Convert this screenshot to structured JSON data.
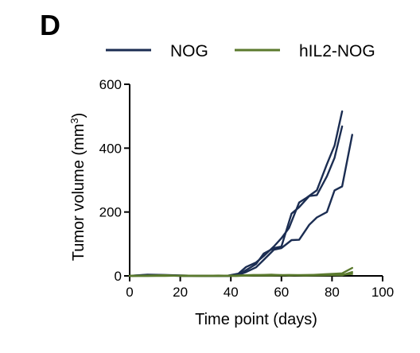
{
  "panel_label": "D",
  "chart_data": {
    "type": "line",
    "title": "",
    "xlabel": "Time point (days)",
    "ylabel_main": "Tumor volume (mm",
    "ylabel_sup": "3",
    "ylabel_close": ")",
    "xlim": [
      0,
      100
    ],
    "ylim": [
      0,
      600
    ],
    "xticks": [
      "0",
      "20",
      "40",
      "60",
      "80",
      "100"
    ],
    "yticks": [
      "0",
      "200",
      "400",
      "600"
    ],
    "xtick_values": [
      0,
      20,
      40,
      60,
      80,
      100
    ],
    "ytick_values": [
      0,
      200,
      400,
      600
    ],
    "legend_position": "top",
    "grid": false,
    "groups": [
      {
        "name": "NOG",
        "color": "#1b2d52",
        "lines": [
          [
            [
              0,
              0
            ],
            [
              7,
              3
            ],
            [
              14,
              2
            ],
            [
              21,
              1
            ],
            [
              28,
              0
            ],
            [
              35,
              0
            ],
            [
              39,
              1
            ],
            [
              43,
              7
            ],
            [
              46,
              28
            ],
            [
              50,
              42
            ],
            [
              53,
              62
            ],
            [
              57,
              92
            ],
            [
              60,
              118
            ],
            [
              63,
              150
            ],
            [
              67,
              230
            ],
            [
              70,
              245
            ],
            [
              74,
              268
            ],
            [
              78,
              350
            ],
            [
              81,
              408
            ],
            [
              84,
              515
            ]
          ],
          [
            [
              0,
              0
            ],
            [
              7,
              4
            ],
            [
              14,
              3
            ],
            [
              21,
              1
            ],
            [
              28,
              0
            ],
            [
              35,
              0
            ],
            [
              39,
              0
            ],
            [
              43,
              4
            ],
            [
              46,
              18
            ],
            [
              50,
              37
            ],
            [
              53,
              70
            ],
            [
              57,
              87
            ],
            [
              60,
              92
            ],
            [
              64,
              195
            ],
            [
              67,
              215
            ],
            [
              71,
              250
            ],
            [
              74,
              253
            ],
            [
              78,
              312
            ],
            [
              81,
              370
            ],
            [
              84,
              468
            ]
          ],
          [
            [
              0,
              0
            ],
            [
              7,
              1
            ],
            [
              14,
              1
            ],
            [
              21,
              0
            ],
            [
              28,
              0
            ],
            [
              35,
              0
            ],
            [
              40,
              0
            ],
            [
              43,
              3
            ],
            [
              46,
              12
            ],
            [
              50,
              27
            ],
            [
              53,
              50
            ],
            [
              57,
              82
            ],
            [
              60,
              87
            ],
            [
              64,
              112
            ],
            [
              67,
              113
            ],
            [
              71,
              160
            ],
            [
              74,
              183
            ],
            [
              78,
              200
            ],
            [
              81,
              268
            ],
            [
              84,
              280
            ],
            [
              88,
              442
            ]
          ]
        ]
      },
      {
        "name": "hIL2-NOG",
        "color": "#5b7a2e",
        "lines": [
          [
            [
              0,
              0
            ],
            [
              7,
              1
            ],
            [
              14,
              2
            ],
            [
              21,
              0
            ],
            [
              28,
              0
            ],
            [
              35,
              0
            ],
            [
              42,
              1
            ],
            [
              49,
              3
            ],
            [
              56,
              2
            ],
            [
              63,
              3
            ],
            [
              70,
              2
            ],
            [
              77,
              5
            ],
            [
              84,
              8
            ],
            [
              88,
              25
            ]
          ],
          [
            [
              0,
              0
            ],
            [
              7,
              0
            ],
            [
              14,
              1
            ],
            [
              21,
              0
            ],
            [
              28,
              0
            ],
            [
              35,
              0
            ],
            [
              42,
              0
            ],
            [
              49,
              2
            ],
            [
              56,
              4
            ],
            [
              63,
              1
            ],
            [
              70,
              3
            ],
            [
              77,
              3
            ],
            [
              84,
              2
            ],
            [
              88,
              12
            ]
          ],
          [
            [
              0,
              0
            ],
            [
              7,
              0
            ],
            [
              14,
              0
            ],
            [
              21,
              1
            ],
            [
              28,
              0
            ],
            [
              35,
              1
            ],
            [
              42,
              0
            ],
            [
              49,
              1
            ],
            [
              56,
              1
            ],
            [
              63,
              2
            ],
            [
              70,
              1
            ],
            [
              77,
              2
            ],
            [
              84,
              4
            ],
            [
              88,
              6
            ]
          ]
        ]
      }
    ]
  }
}
